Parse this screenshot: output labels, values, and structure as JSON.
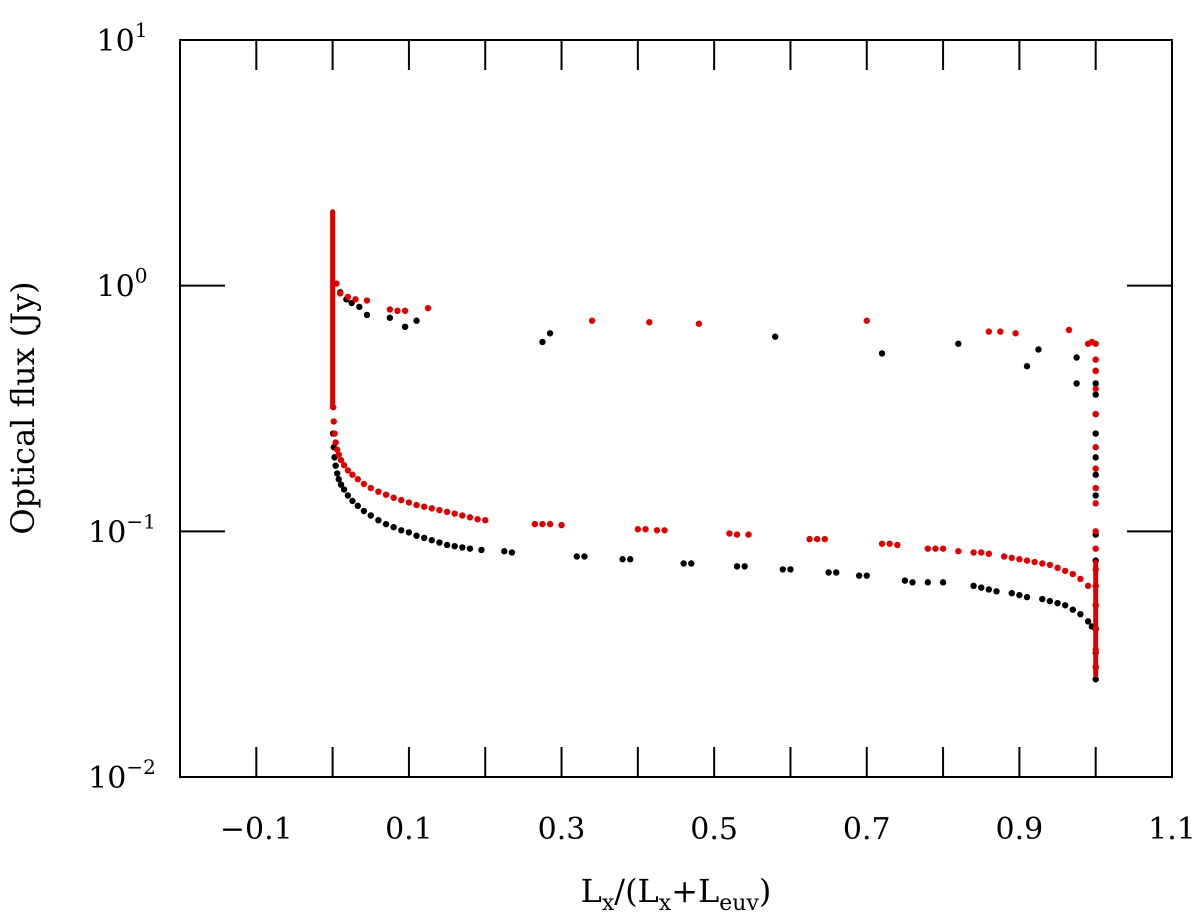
{
  "chart_data": {
    "type": "scatter",
    "title": "",
    "xlabel": {
      "main": "L",
      "sub1": "x",
      "mid": "/(L",
      "sub2": "x",
      "plus": "+L",
      "sub3": "euv",
      "close": ")"
    },
    "ylabel": "Optical flux (Jy)",
    "xlim": [
      -0.2,
      1.1
    ],
    "ylim_log10": [
      -2,
      1
    ],
    "xscale": "linear",
    "yscale": "log",
    "grid": false,
    "x_ticks": [
      {
        "value": -0.1,
        "label": "−0.1"
      },
      {
        "value": 0.1,
        "label": "0.1"
      },
      {
        "value": 0.3,
        "label": "0.3"
      },
      {
        "value": 0.5,
        "label": "0.5"
      },
      {
        "value": 0.7,
        "label": "0.7"
      },
      {
        "value": 0.9,
        "label": "0.9"
      },
      {
        "value": 1.1,
        "label": "1.1"
      }
    ],
    "x_minor_ticks": [
      0.0,
      0.2,
      0.4,
      0.6,
      0.8,
      1.0
    ],
    "y_ticks": [
      {
        "exp": -2,
        "base": "10",
        "sup": "−2"
      },
      {
        "exp": -1,
        "base": "10",
        "sup": "−1"
      },
      {
        "exp": 0,
        "base": "10",
        "sup": "0"
      },
      {
        "exp": 1,
        "base": "10",
        "sup": "1"
      }
    ],
    "series": [
      {
        "name": "black",
        "color": "#000000",
        "points": [
          [
            0.01,
            0.94
          ],
          [
            0.018,
            0.88
          ],
          [
            0.025,
            0.85
          ],
          [
            0.035,
            0.82
          ],
          [
            0.045,
            0.76
          ],
          [
            0.075,
            0.74
          ],
          [
            0.095,
            0.68
          ],
          [
            0.11,
            0.72
          ],
          [
            0.275,
            0.59
          ],
          [
            0.285,
            0.64
          ],
          [
            0.58,
            0.62
          ],
          [
            0.72,
            0.53
          ],
          [
            0.82,
            0.58
          ],
          [
            0.91,
            0.47
          ],
          [
            0.925,
            0.55
          ],
          [
            0.975,
            0.51
          ],
          [
            0.975,
            0.4
          ],
          [
            0.0007,
            0.25
          ],
          [
            0.0015,
            0.22
          ],
          [
            0.0025,
            0.2
          ],
          [
            0.004,
            0.185
          ],
          [
            0.006,
            0.172
          ],
          [
            0.008,
            0.163
          ],
          [
            0.011,
            0.155
          ],
          [
            0.015,
            0.148
          ],
          [
            0.02,
            0.14
          ],
          [
            0.026,
            0.133
          ],
          [
            0.033,
            0.127
          ],
          [
            0.041,
            0.121
          ],
          [
            0.05,
            0.116
          ],
          [
            0.06,
            0.111
          ],
          [
            0.07,
            0.107
          ],
          [
            0.08,
            0.104
          ],
          [
            0.09,
            0.101
          ],
          [
            0.1,
            0.099
          ],
          [
            0.11,
            0.096
          ],
          [
            0.12,
            0.094
          ],
          [
            0.13,
            0.092
          ],
          [
            0.14,
            0.09
          ],
          [
            0.15,
            0.088
          ],
          [
            0.16,
            0.087
          ],
          [
            0.17,
            0.086
          ],
          [
            0.18,
            0.085
          ],
          [
            0.195,
            0.084
          ],
          [
            0.225,
            0.083
          ],
          [
            0.235,
            0.082
          ],
          [
            0.32,
            0.079
          ],
          [
            0.33,
            0.079
          ],
          [
            0.38,
            0.077
          ],
          [
            0.39,
            0.077
          ],
          [
            0.46,
            0.074
          ],
          [
            0.47,
            0.074
          ],
          [
            0.53,
            0.072
          ],
          [
            0.54,
            0.072
          ],
          [
            0.59,
            0.07
          ],
          [
            0.6,
            0.07
          ],
          [
            0.65,
            0.068
          ],
          [
            0.66,
            0.068
          ],
          [
            0.69,
            0.066
          ],
          [
            0.7,
            0.066
          ],
          [
            0.75,
            0.063
          ],
          [
            0.76,
            0.062
          ],
          [
            0.78,
            0.062
          ],
          [
            0.8,
            0.062
          ],
          [
            0.84,
            0.06
          ],
          [
            0.85,
            0.059
          ],
          [
            0.86,
            0.058
          ],
          [
            0.87,
            0.057
          ],
          [
            0.89,
            0.056
          ],
          [
            0.9,
            0.055
          ],
          [
            0.91,
            0.054
          ],
          [
            0.93,
            0.053
          ],
          [
            0.94,
            0.052
          ],
          [
            0.95,
            0.051
          ],
          [
            0.96,
            0.05
          ],
          [
            0.97,
            0.048
          ],
          [
            0.98,
            0.046
          ],
          [
            0.99,
            0.043
          ],
          [
            0.995,
            0.041
          ],
          [
            1.0,
            0.45
          ],
          [
            1.0,
            0.4
          ],
          [
            1.0,
            0.36
          ],
          [
            1.0,
            0.3
          ],
          [
            1.0,
            0.25
          ],
          [
            1.0,
            0.2
          ],
          [
            1.0,
            0.17
          ],
          [
            1.0,
            0.14
          ],
          [
            1.0,
            0.097
          ],
          [
            1.0,
            0.076
          ],
          [
            1.0,
            0.06
          ],
          [
            1.0,
            0.05
          ],
          [
            1.0,
            0.04
          ],
          [
            1.0,
            0.032
          ],
          [
            1.0,
            0.028
          ],
          [
            1.0,
            0.025
          ]
        ]
      },
      {
        "name": "red",
        "color": "#e00000",
        "points": [
          [
            0.005,
            1.02
          ],
          [
            0.01,
            0.93
          ],
          [
            0.02,
            0.9
          ],
          [
            0.03,
            0.88
          ],
          [
            0.045,
            0.87
          ],
          [
            0.075,
            0.8
          ],
          [
            0.085,
            0.79
          ],
          [
            0.095,
            0.79
          ],
          [
            0.125,
            0.81
          ],
          [
            0.34,
            0.72
          ],
          [
            0.415,
            0.71
          ],
          [
            0.48,
            0.7
          ],
          [
            0.7,
            0.72
          ],
          [
            0.86,
            0.65
          ],
          [
            0.875,
            0.65
          ],
          [
            0.895,
            0.64
          ],
          [
            0.965,
            0.66
          ],
          [
            0.99,
            0.58
          ],
          [
            0.995,
            0.59
          ],
          [
            0.0008,
            0.32
          ],
          [
            0.0015,
            0.28
          ],
          [
            0.0025,
            0.25
          ],
          [
            0.004,
            0.23
          ],
          [
            0.006,
            0.215
          ],
          [
            0.008,
            0.205
          ],
          [
            0.011,
            0.195
          ],
          [
            0.015,
            0.186
          ],
          [
            0.02,
            0.177
          ],
          [
            0.026,
            0.17
          ],
          [
            0.033,
            0.163
          ],
          [
            0.041,
            0.156
          ],
          [
            0.05,
            0.15
          ],
          [
            0.06,
            0.145
          ],
          [
            0.07,
            0.141
          ],
          [
            0.08,
            0.137
          ],
          [
            0.09,
            0.134
          ],
          [
            0.1,
            0.131
          ],
          [
            0.11,
            0.128
          ],
          [
            0.12,
            0.126
          ],
          [
            0.13,
            0.124
          ],
          [
            0.14,
            0.122
          ],
          [
            0.15,
            0.12
          ],
          [
            0.16,
            0.118
          ],
          [
            0.17,
            0.116
          ],
          [
            0.18,
            0.114
          ],
          [
            0.19,
            0.112
          ],
          [
            0.2,
            0.111
          ],
          [
            0.265,
            0.107
          ],
          [
            0.275,
            0.107
          ],
          [
            0.285,
            0.107
          ],
          [
            0.3,
            0.106
          ],
          [
            0.4,
            0.102
          ],
          [
            0.41,
            0.102
          ],
          [
            0.425,
            0.101
          ],
          [
            0.435,
            0.101
          ],
          [
            0.52,
            0.098
          ],
          [
            0.53,
            0.097
          ],
          [
            0.545,
            0.097
          ],
          [
            0.625,
            0.093
          ],
          [
            0.635,
            0.093
          ],
          [
            0.645,
            0.093
          ],
          [
            0.72,
            0.089
          ],
          [
            0.73,
            0.089
          ],
          [
            0.74,
            0.088
          ],
          [
            0.78,
            0.085
          ],
          [
            0.79,
            0.085
          ],
          [
            0.8,
            0.085
          ],
          [
            0.82,
            0.083
          ],
          [
            0.84,
            0.082
          ],
          [
            0.85,
            0.082
          ],
          [
            0.86,
            0.081
          ],
          [
            0.88,
            0.079
          ],
          [
            0.89,
            0.078
          ],
          [
            0.9,
            0.077
          ],
          [
            0.91,
            0.076
          ],
          [
            0.92,
            0.075
          ],
          [
            0.93,
            0.074
          ],
          [
            0.94,
            0.073
          ],
          [
            0.95,
            0.071
          ],
          [
            0.96,
            0.069
          ],
          [
            0.97,
            0.067
          ],
          [
            0.98,
            0.064
          ],
          [
            0.99,
            0.06
          ],
          [
            1.0,
            0.58
          ],
          [
            1.0,
            0.5
          ],
          [
            1.0,
            0.45
          ],
          [
            1.0,
            0.38
          ],
          [
            1.0,
            0.3
          ],
          [
            1.0,
            0.22
          ],
          [
            1.0,
            0.18
          ],
          [
            1.0,
            0.15
          ],
          [
            1.0,
            0.13
          ],
          [
            1.0,
            0.1
          ],
          [
            1.0,
            0.085
          ],
          [
            1.0,
            0.07
          ],
          [
            1.0,
            0.06
          ],
          [
            1.0,
            0.05
          ],
          [
            1.0,
            0.04
          ],
          [
            1.0,
            0.033
          ],
          [
            1.0,
            0.028
          ]
        ],
        "vertical_segments": [
          {
            "x": 0.0,
            "from": 0.32,
            "to": 2.0
          },
          {
            "x": 1.0,
            "from": 0.026,
            "to": 0.075
          }
        ]
      }
    ]
  }
}
